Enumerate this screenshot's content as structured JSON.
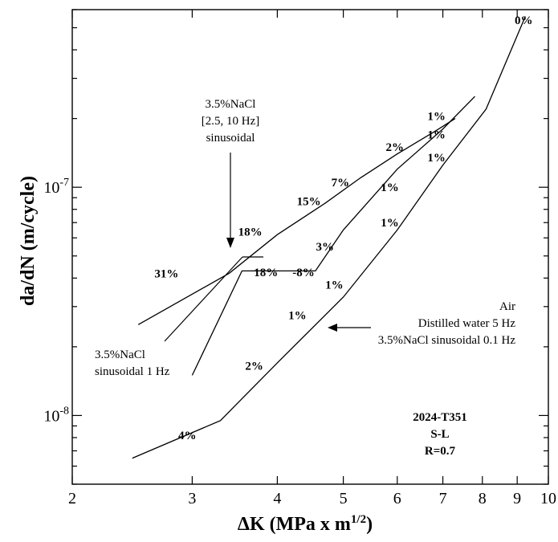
{
  "chart_data": {
    "type": "line",
    "title": "",
    "xlabel": "ΔK (MPa x m",
    "xlabel_sup": "1/2",
    "xlabel_close": ")",
    "ylabel": "da/dN (m/cycle)",
    "xscale": "log",
    "yscale": "log",
    "xlim": [
      2,
      10
    ],
    "ylim": [
      5e-09,
      6e-07
    ],
    "grid": false,
    "x_tick_labels": [
      "2",
      "3",
      "4",
      "5",
      "6",
      "7",
      "8",
      "9",
      "10"
    ],
    "x_ticks": [
      2,
      3,
      4,
      5,
      6,
      7,
      8,
      9,
      10
    ],
    "y_tick_labels": [
      {
        "base": "10",
        "exp": "-7",
        "value": 1e-07
      },
      {
        "base": "10",
        "exp": "-8",
        "value": 1e-08
      }
    ],
    "series": [
      {
        "points": [
          [
            2.5,
            2.5e-08
          ],
          [
            3.4,
            4.2e-08
          ],
          [
            4.0,
            6.2e-08
          ],
          [
            4.7,
            8.5e-08
          ],
          [
            5.3,
            1.1e-07
          ],
          [
            6.0,
            1.4e-07
          ],
          [
            6.8,
            1.75e-07
          ],
          [
            7.3,
            2e-07
          ]
        ]
      },
      {
        "points": [
          [
            3.0,
            1.5e-08
          ],
          [
            3.55,
            4.3e-08
          ],
          [
            4.55,
            4.3e-08
          ],
          [
            5.0,
            6.5e-08
          ],
          [
            6.0,
            1.2e-07
          ],
          [
            7.0,
            1.8e-07
          ],
          [
            7.8,
            2.5e-07
          ]
        ]
      },
      {
        "points": [
          [
            2.45,
            6.5e-09
          ],
          [
            3.3,
            9.5e-09
          ],
          [
            4.0,
            1.7e-08
          ],
          [
            5.0,
            3.3e-08
          ],
          [
            6.0,
            6.5e-08
          ],
          [
            7.0,
            1.25e-07
          ],
          [
            8.1,
            2.2e-07
          ],
          [
            9.25,
            5.6e-07
          ]
        ]
      }
    ],
    "point_labels": [
      {
        "text": "31%",
        "x": 2.75,
        "y": 4.2e-08
      },
      {
        "text": "18%",
        "x": 3.65,
        "y": 6.4e-08
      },
      {
        "text": "15%",
        "x": 4.45,
        "y": 8.7e-08
      },
      {
        "text": "7%",
        "x": 4.95,
        "y": 1.05e-07
      },
      {
        "text": "2%",
        "x": 5.95,
        "y": 1.5e-07
      },
      {
        "text": "1%",
        "x": 6.85,
        "y": 2.05e-07
      },
      {
        "text": "1%",
        "x": 6.85,
        "y": 1.7e-07
      },
      {
        "text": "1%",
        "x": 6.85,
        "y": 1.35e-07
      },
      {
        "text": "0%",
        "x": 9.2,
        "y": 5.4e-07
      },
      {
        "text": "18%",
        "x": 3.85,
        "y": 4.25e-08
      },
      {
        "text": "-8%",
        "x": 4.37,
        "y": 4.25e-08
      },
      {
        "text": "1%",
        "x": 5.85,
        "y": 1e-07
      },
      {
        "text": "3%",
        "x": 4.7,
        "y": 5.5e-08
      },
      {
        "text": "1%",
        "x": 5.85,
        "y": 7e-08
      },
      {
        "text": "1%",
        "x": 4.85,
        "y": 3.75e-08
      },
      {
        "text": "1%",
        "x": 4.28,
        "y": 2.75e-08
      },
      {
        "text": "2%",
        "x": 3.7,
        "y": 1.65e-08
      },
      {
        "text": "4%",
        "x": 2.95,
        "y": 8.2e-09
      }
    ],
    "annotations": {
      "nacl_10hz": [
        "3.5%NaCl",
        "[2.5, 10 Hz]",
        "sinusoidal"
      ],
      "nacl_1hz": [
        "3.5%NaCl",
        "sinusoidal 1 Hz"
      ],
      "air_group": [
        "Air",
        "Distilled water 5 Hz",
        "3.5%NaCl sinusoidal 0.1 Hz"
      ],
      "specimen": [
        "2024-T351",
        "S-L",
        "R=0.7"
      ]
    }
  }
}
